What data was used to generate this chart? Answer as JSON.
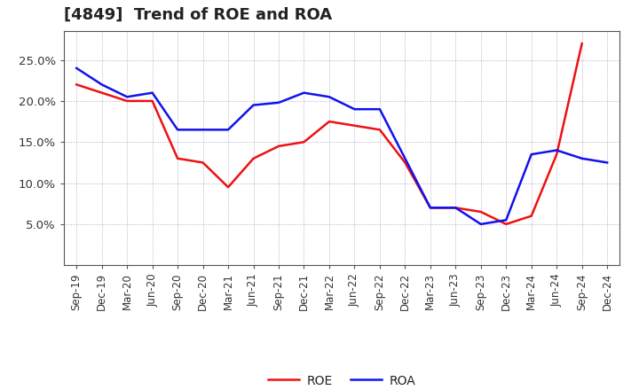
{
  "title": "[4849]  Trend of ROE and ROA",
  "labels": [
    "Sep-19",
    "Dec-19",
    "Mar-20",
    "Jun-20",
    "Sep-20",
    "Dec-20",
    "Mar-21",
    "Jun-21",
    "Sep-21",
    "Dec-21",
    "Mar-22",
    "Jun-22",
    "Sep-22",
    "Dec-22",
    "Mar-23",
    "Jun-23",
    "Sep-23",
    "Dec-23",
    "Mar-24",
    "Jun-24",
    "Sep-24",
    "Dec-24"
  ],
  "ROE": [
    22.0,
    21.0,
    20.0,
    20.0,
    13.0,
    12.5,
    9.5,
    13.0,
    14.5,
    15.0,
    17.5,
    17.0,
    16.5,
    12.5,
    7.0,
    7.0,
    6.5,
    5.0,
    6.0,
    13.5,
    27.0,
    null
  ],
  "ROA": [
    24.0,
    22.0,
    20.5,
    21.0,
    16.5,
    16.5,
    16.5,
    19.5,
    19.8,
    21.0,
    20.5,
    19.0,
    19.0,
    13.0,
    7.0,
    7.0,
    5.0,
    5.5,
    13.5,
    14.0,
    13.0,
    12.5
  ],
  "roe_color": "#ee1111",
  "roa_color": "#1111ee",
  "background_color": "#ffffff",
  "plot_bg_color": "#ffffff",
  "grid_color": "#aaaacc",
  "ylim": [
    0.0,
    28.5
  ],
  "yticks": [
    5.0,
    10.0,
    15.0,
    20.0,
    25.0
  ],
  "ytick_labels": [
    "5.0%",
    "10.0%",
    "15.0%",
    "20.0%",
    "25.0%"
  ],
  "legend_labels": [
    "ROE",
    "ROA"
  ],
  "linewidth": 1.8,
  "title_fontsize": 13,
  "tick_fontsize": 8.5,
  "ytick_fontsize": 9.5
}
